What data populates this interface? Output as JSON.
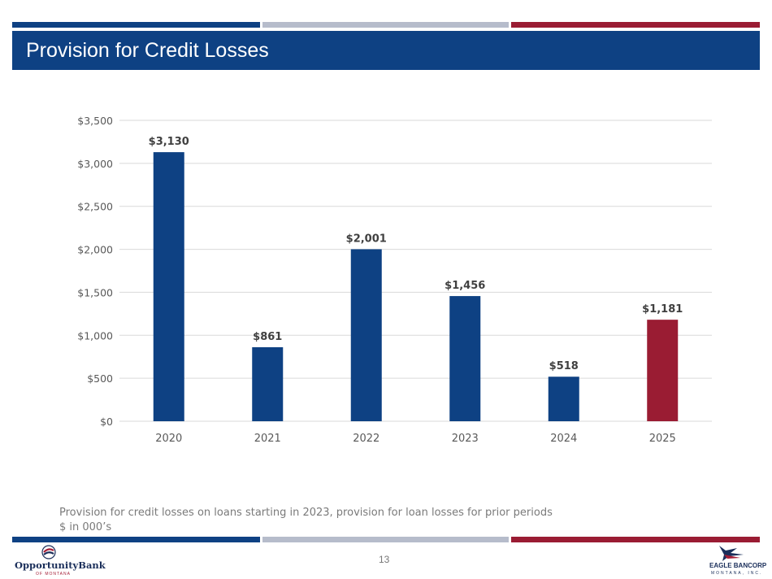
{
  "colors": {
    "navy": "#0e4183",
    "gray_stripe": "#b6bccb",
    "red": "#9a1c33"
  },
  "header": {
    "title": "Provision for Credit Losses"
  },
  "chart_data": {
    "type": "bar",
    "categories": [
      "2020",
      "2021",
      "2022",
      "2023",
      "2024",
      "2025"
    ],
    "values": [
      3130,
      861,
      2001,
      1456,
      518,
      1181
    ],
    "data_labels": [
      "$3,130",
      "$861",
      "$2,001",
      "$1,456",
      "$518",
      "$1,181"
    ],
    "bar_colors": [
      "#0e4183",
      "#0e4183",
      "#0e4183",
      "#0e4183",
      "#0e4183",
      "#9a1c33"
    ],
    "yticks": [
      0,
      500,
      1000,
      1500,
      2000,
      2500,
      3000,
      3500
    ],
    "ytick_labels": [
      "$0",
      "$500",
      "$1,000",
      "$1,500",
      "$2,000",
      "$2,500",
      "$3,000",
      "$3,500"
    ],
    "ylim": [
      0,
      3500
    ],
    "grid": true,
    "title": "",
    "xlabel": "",
    "ylabel": ""
  },
  "footer": {
    "note_line1": "Provision for credit losses on loans starting in 2023, provision for loan losses for prior periods",
    "note_line2": "$ in 000’s",
    "page_number": "13",
    "logo_left_name": "OpportunityBank",
    "logo_left_sub": "OF MONTANA",
    "logo_right_name": "EAGLE BANCORP",
    "logo_right_sub": "MONTANA, INC."
  },
  "icons": {
    "logo_left": "opportunity-bank-logo-icon",
    "logo_right": "eagle-bancorp-logo-icon"
  }
}
